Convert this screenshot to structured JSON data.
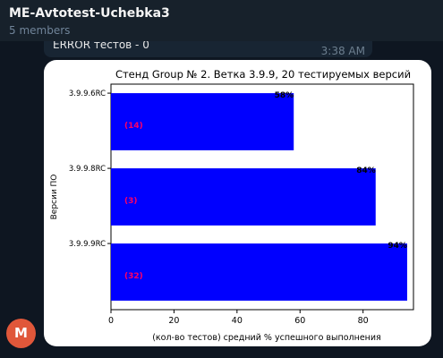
{
  "header": {
    "title": "ME-Avtotest-Uchebka3",
    "subtitle": "5 members"
  },
  "previous_message": {
    "text": "ERROR тестов - 0",
    "time": "3:38 AM"
  },
  "avatar": {
    "letter": "M",
    "color": "#e0573a"
  },
  "chart_data": {
    "type": "bar",
    "orientation": "horizontal",
    "title": "Стенд Group № 2. Ветка 3.9.9, 20 тестируемых версий",
    "xlabel": "(кол-во тестов) средний % успешного выполнения",
    "ylabel": "Версии ПО",
    "categories": [
      "3.9.9.6RC",
      "3.9.9.8RC",
      "3.9.9.9RC"
    ],
    "values": [
      58,
      84,
      94
    ],
    "value_labels": [
      "58%",
      "84%",
      "94%"
    ],
    "count_labels": [
      "(14)",
      "(3)",
      "(32)"
    ],
    "xlim": [
      0,
      96
    ],
    "xticks": [
      0,
      20,
      40,
      60,
      80
    ],
    "bar_color": "#0000ff",
    "count_label_color": "#ff0066",
    "grid": false
  }
}
